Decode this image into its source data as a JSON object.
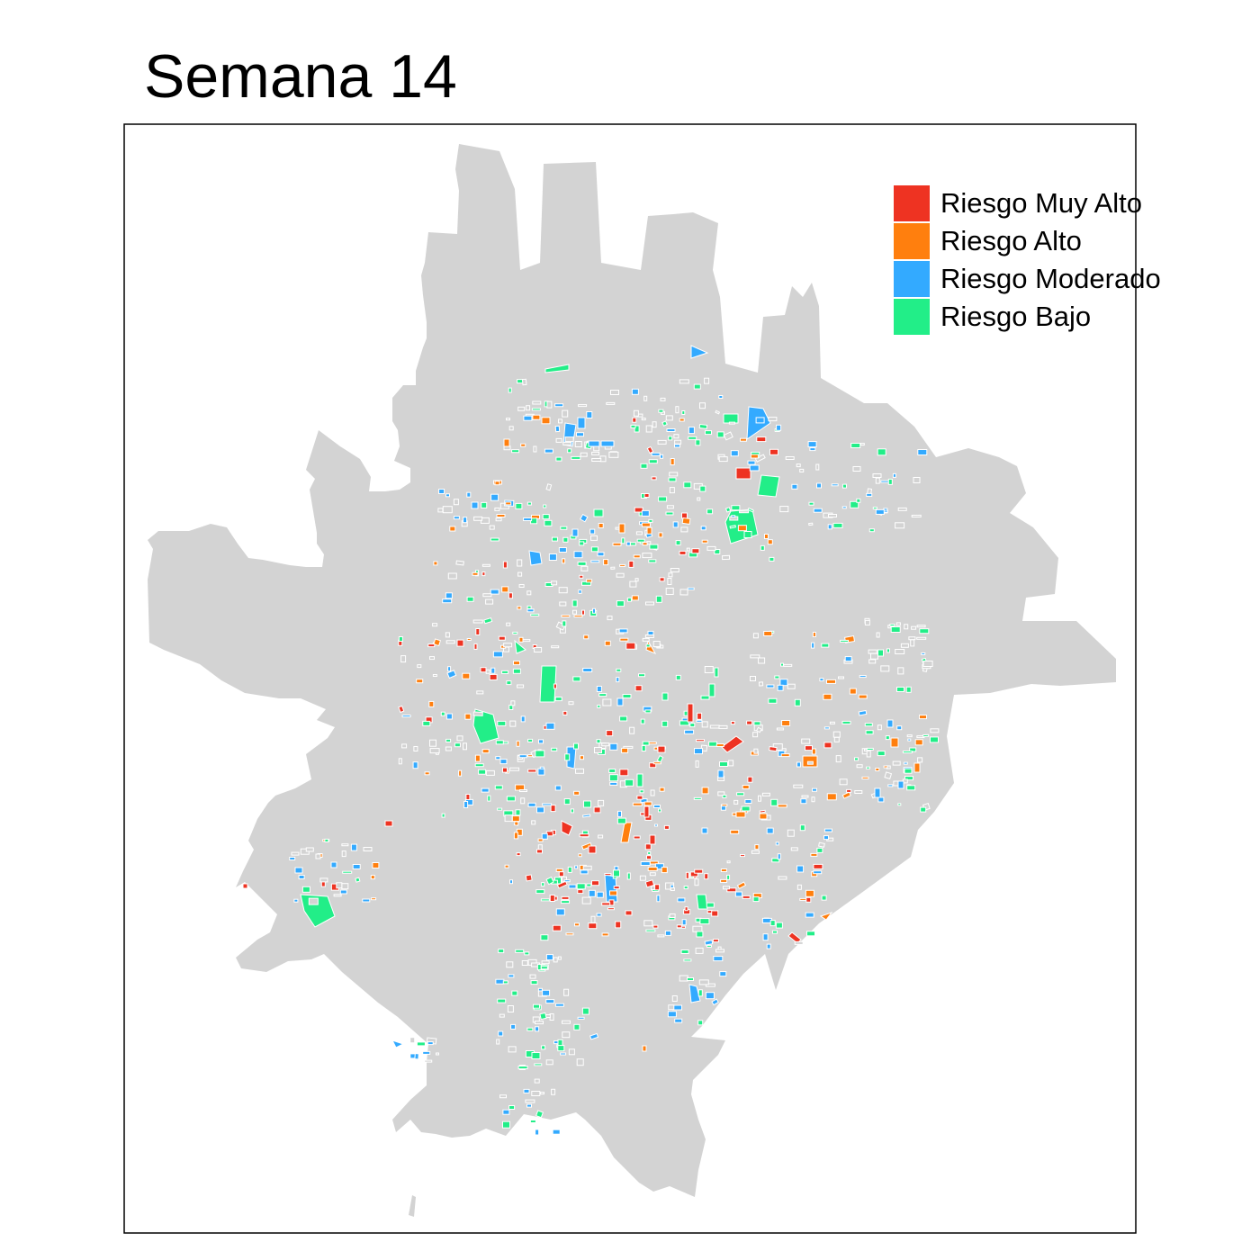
{
  "map": {
    "title": "Semana 14",
    "base_color": "#d3d3d3",
    "block_outline_color": "#ffffff",
    "frame_color": "#000000"
  },
  "legend": {
    "items": [
      {
        "label": "Riesgo Muy Alto",
        "color": "#ee3322",
        "icon": "red-swatch"
      },
      {
        "label": "Riesgo Alto",
        "color": "#ff7f0e",
        "icon": "orange-swatch"
      },
      {
        "label": "Riesgo Moderado",
        "color": "#33aaff",
        "icon": "blue-swatch"
      },
      {
        "label": "Riesgo Bajo",
        "color": "#22ee88",
        "icon": "green-swatch"
      }
    ]
  }
}
